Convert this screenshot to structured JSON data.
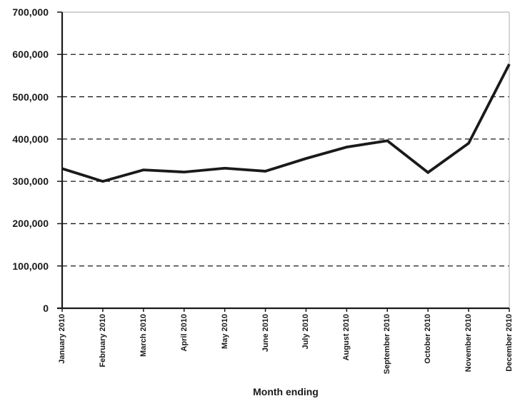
{
  "chart_data": {
    "type": "line",
    "title": "",
    "xlabel": "Month ending",
    "ylabel": "",
    "categories": [
      "January 2010",
      "February 2010",
      "March 2010",
      "April 2010",
      "May 2010",
      "June 2010",
      "July 2010",
      "August 2010",
      "September 2010",
      "October 2010",
      "November 2010",
      "December 2010"
    ],
    "values": [
      330000,
      300000,
      327000,
      322000,
      331000,
      324000,
      354000,
      381000,
      396000,
      321000,
      390000,
      577000
    ],
    "ylim": [
      0,
      700000
    ],
    "ytick_interval": 100000,
    "yticks": [
      0,
      100000,
      200000,
      300000,
      400000,
      500000,
      600000,
      700000
    ],
    "ytick_labels": [
      "0",
      "100,000",
      "200,000",
      "300,000",
      "400,000",
      "500,000",
      "600,000",
      "700,000"
    ],
    "grid": "horizontal-dashed",
    "legend_position": "none",
    "colors": {
      "line": "#1a1a1a",
      "grid": "#1a1a1a",
      "axis": "#1a1a1a",
      "plot_border": "#c4c4c4",
      "text": "#1a1a1a",
      "background": "#ffffff"
    }
  }
}
